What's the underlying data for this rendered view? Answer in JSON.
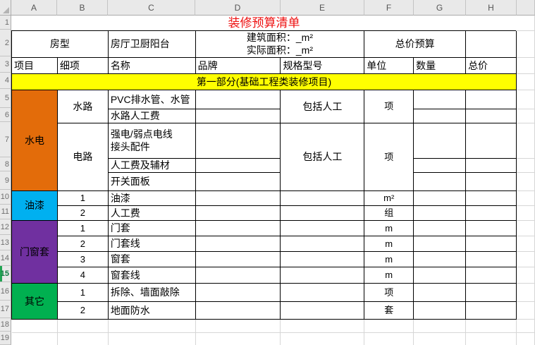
{
  "window": {
    "selected_row": "15"
  },
  "column_headers": [
    "A",
    "B",
    "C",
    "D",
    "E",
    "F",
    "G",
    "H"
  ],
  "row_headers": [
    "1",
    "2",
    "3",
    "4",
    "5",
    "6",
    "7",
    "8",
    "9",
    "10",
    "11",
    "12",
    "13",
    "14",
    "15",
    "16",
    "17",
    "18",
    "19"
  ],
  "title": "装修预算清单",
  "info_row": {
    "house_type_label": "房型",
    "house_layout": "房厅卫厨阳台",
    "area_lines": "建筑面积：_m²\n实际面积：_m²",
    "total_budget_label": "总价预算"
  },
  "headers": {
    "item": "项目",
    "detail": "细项",
    "name": "名称",
    "brand": "品牌",
    "spec": "规格型号",
    "unit": "单位",
    "qty": "数量",
    "total": "总价"
  },
  "banner": "第一部分(基础工程类装修项目)",
  "groups": [
    {
      "label": "水电",
      "color": "#E36C0A",
      "subgroups": [
        {
          "label": "水路",
          "spec": "包括人工",
          "unit": "项",
          "items": [
            "PVC排水管、水管",
            "水路人工费"
          ]
        },
        {
          "label": "电路",
          "spec": "包括人工",
          "unit": "项",
          "items": [
            "强电/弱点电线\n接头配件",
            "人工费及辅材",
            "开关面板"
          ]
        }
      ]
    },
    {
      "label": "油漆",
      "color": "#00B0F0",
      "items": [
        {
          "no": "1",
          "name": "油漆",
          "unit": "m²"
        },
        {
          "no": "2",
          "name": "人工费",
          "unit": "组"
        }
      ]
    },
    {
      "label": "门窗套",
      "color": "#7030A0",
      "items": [
        {
          "no": "1",
          "name": "门套",
          "unit": "m"
        },
        {
          "no": "2",
          "name": "门套线",
          "unit": "m"
        },
        {
          "no": "3",
          "name": "窗套",
          "unit": "m"
        },
        {
          "no": "4",
          "name": "窗套线",
          "unit": "m"
        }
      ]
    },
    {
      "label": "其它",
      "color": "#00B050",
      "items": [
        {
          "no": "1",
          "name": "拆除、墙面敲除",
          "unit": "项"
        },
        {
          "no": "2",
          "name": "地面防水",
          "unit": "套"
        }
      ]
    }
  ],
  "colors": {
    "title_red": "#EE1111",
    "banner_yellow": "#FFFF00",
    "hydro_orange": "#E36C0A",
    "paint_cyan": "#00B0F0",
    "door_purple": "#7030A0",
    "other_green": "#00B050",
    "selected_green": "#107C41"
  }
}
